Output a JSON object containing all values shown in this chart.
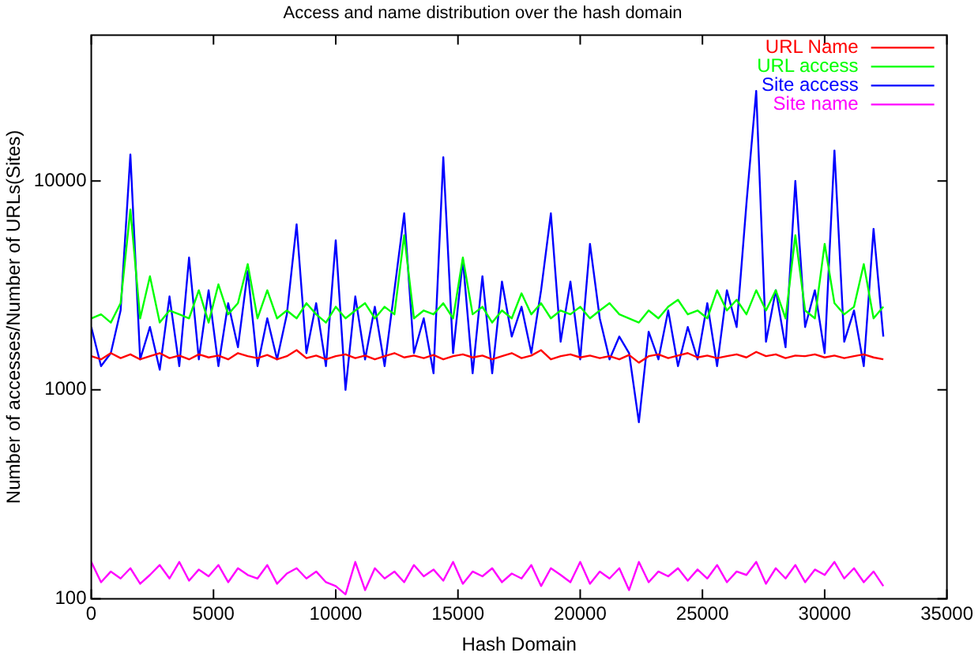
{
  "chart_data": {
    "type": "line",
    "title": "Access and name distribution over the hash domain",
    "xlabel": "Hash Domain",
    "ylabel": "Number of accesses/Number of URLs(Sites)",
    "x": [
      0,
      400,
      800,
      1200,
      1600,
      2000,
      2400,
      2800,
      3200,
      3600,
      4000,
      4400,
      4800,
      5200,
      5600,
      6000,
      6400,
      6800,
      7200,
      7600,
      8000,
      8400,
      8800,
      9200,
      9600,
      10000,
      10400,
      10800,
      11200,
      11600,
      12000,
      12400,
      12800,
      13200,
      13600,
      14000,
      14400,
      14800,
      15200,
      15600,
      16000,
      16400,
      16800,
      17200,
      17600,
      18000,
      18400,
      18800,
      19200,
      19600,
      20000,
      20400,
      20800,
      21200,
      21600,
      22000,
      22400,
      22800,
      23200,
      23600,
      24000,
      24400,
      24800,
      25200,
      25600,
      26000,
      26400,
      26800,
      27200,
      27600,
      28000,
      28400,
      28800,
      29200,
      29600,
      30000,
      30400,
      30800,
      31200,
      31600,
      32000,
      32400
    ],
    "series": [
      {
        "name": "URL Name",
        "color": "#ff0000",
        "values": [
          1450,
          1400,
          1500,
          1420,
          1480,
          1400,
          1450,
          1500,
          1420,
          1460,
          1400,
          1480,
          1430,
          1460,
          1400,
          1500,
          1450,
          1420,
          1470,
          1400,
          1450,
          1550,
          1420,
          1460,
          1400,
          1450,
          1480,
          1420,
          1460,
          1400,
          1450,
          1500,
          1430,
          1460,
          1420,
          1470,
          1400,
          1450,
          1480,
          1430,
          1460,
          1400,
          1450,
          1500,
          1420,
          1460,
          1550,
          1400,
          1450,
          1480,
          1430,
          1460,
          1420,
          1450,
          1400,
          1470,
          1350,
          1450,
          1480,
          1420,
          1460,
          1500,
          1430,
          1460,
          1420,
          1450,
          1480,
          1430,
          1520,
          1450,
          1480,
          1420,
          1460,
          1450,
          1480,
          1430,
          1460,
          1420,
          1450,
          1480,
          1430,
          1400
        ]
      },
      {
        "name": "URL access",
        "color": "#00ff00",
        "values": [
          2200,
          2300,
          2100,
          2600,
          7300,
          2200,
          3500,
          2100,
          2400,
          2300,
          2200,
          3000,
          2100,
          3200,
          2300,
          2600,
          4000,
          2200,
          3000,
          2200,
          2400,
          2200,
          2600,
          2300,
          2100,
          2500,
          2200,
          2400,
          2600,
          2200,
          2500,
          2300,
          5500,
          2200,
          2400,
          2300,
          2600,
          2200,
          4300,
          2300,
          2500,
          2100,
          2400,
          2200,
          2900,
          2300,
          2600,
          2200,
          2400,
          2300,
          2500,
          2200,
          2400,
          2600,
          2300,
          2200,
          2100,
          2400,
          2200,
          2500,
          2700,
          2300,
          2400,
          2200,
          3000,
          2400,
          2700,
          2300,
          3000,
          2400,
          3000,
          2200,
          5500,
          2400,
          2200,
          5000,
          2600,
          2300,
          2500,
          4000,
          2200,
          2500
        ]
      },
      {
        "name": "Site access",
        "color": "#0000ff",
        "values": [
          2000,
          1300,
          1500,
          2400,
          13400,
          1400,
          2000,
          1250,
          2800,
          1300,
          4300,
          1400,
          3000,
          1300,
          2600,
          1600,
          3700,
          1300,
          2200,
          1400,
          2300,
          6200,
          1500,
          2600,
          1300,
          5200,
          1000,
          2800,
          1400,
          2500,
          1300,
          3000,
          7000,
          1500,
          2200,
          1200,
          13000,
          1500,
          4200,
          1200,
          3500,
          1200,
          3300,
          1800,
          2500,
          1500,
          3000,
          7000,
          1700,
          3300,
          1400,
          5000,
          2200,
          1400,
          1800,
          1500,
          700,
          1900,
          1400,
          2400,
          1300,
          2000,
          1400,
          2600,
          1300,
          3000,
          2000,
          7800,
          27000,
          1700,
          3000,
          1600,
          10000,
          2000,
          3000,
          1500,
          14000,
          1700,
          2400,
          1300,
          5900,
          1800
        ]
      },
      {
        "name": "Site name",
        "color": "#ff00ff",
        "values": [
          150,
          120,
          135,
          125,
          140,
          118,
          130,
          145,
          125,
          150,
          122,
          138,
          128,
          145,
          120,
          140,
          130,
          125,
          145,
          118,
          132,
          140,
          125,
          135,
          120,
          115,
          105,
          150,
          110,
          140,
          125,
          135,
          120,
          145,
          128,
          138,
          122,
          150,
          118,
          135,
          128,
          140,
          120,
          132,
          125,
          145,
          115,
          140,
          130,
          120,
          150,
          118,
          135,
          125,
          140,
          110,
          150,
          120,
          135,
          128,
          140,
          122,
          138,
          125,
          145,
          120,
          135,
          130,
          150,
          118,
          140,
          125,
          145,
          120,
          138,
          130,
          150,
          125,
          140,
          120,
          135,
          115
        ]
      }
    ],
    "xlim": [
      0,
      35000
    ],
    "xticks": [
      0,
      5000,
      10000,
      15000,
      20000,
      25000,
      30000,
      35000
    ],
    "ylim": [
      100,
      50000
    ],
    "yticks": [
      100,
      1000,
      10000
    ],
    "log": true,
    "grid": false,
    "legend": "top right",
    "marker": "none",
    "line_style": "solid"
  }
}
